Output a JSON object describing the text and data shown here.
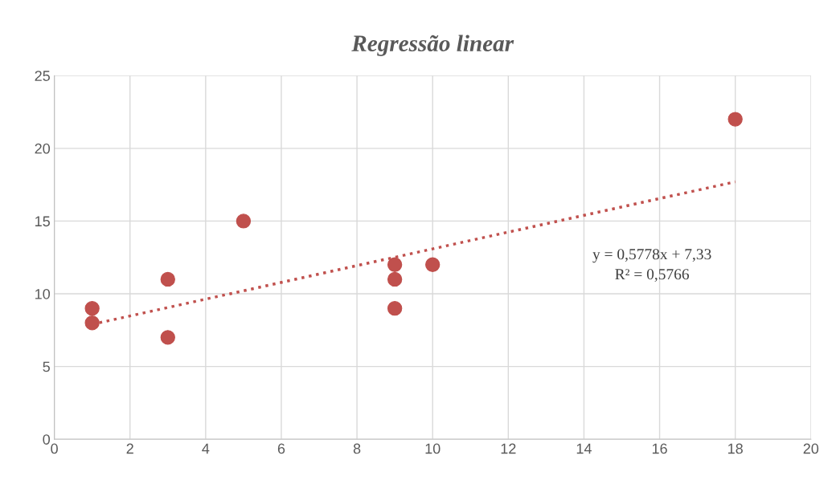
{
  "chart_data": {
    "type": "scatter",
    "title": "Regressão linear",
    "series": [
      {
        "color": "#c0504d",
        "marker": "circle",
        "x": [
          1,
          1,
          3,
          3,
          5,
          9,
          9,
          9,
          10,
          18
        ],
        "values": [
          9,
          8,
          11,
          7,
          15,
          12,
          11,
          9,
          12,
          22
        ]
      },
      {
        "type": "line",
        "color": "#c0504d",
        "line_style": "dotted",
        "marker": "none",
        "x": [
          1,
          18
        ],
        "values": [
          7.9,
          17.7
        ]
      }
    ],
    "annotations": [
      "y = 0,5778x + 7,33",
      "R² = 0,5766"
    ],
    "xlim": [
      0,
      20
    ],
    "xticks": [
      0,
      2,
      4,
      6,
      8,
      10,
      12,
      14,
      16,
      18,
      20
    ],
    "ylim": [
      0,
      25
    ],
    "yticks": [
      0,
      5,
      10,
      15,
      20,
      25
    ],
    "grid": true,
    "legend": false
  }
}
